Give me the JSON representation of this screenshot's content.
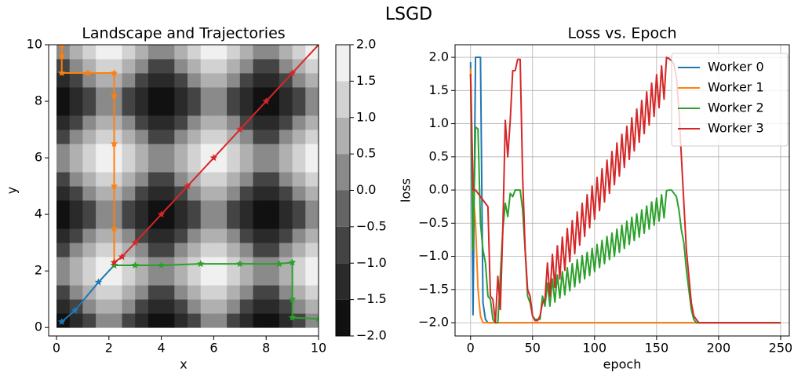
{
  "title": "LSGD",
  "chart_data": [
    {
      "type": "contour",
      "title": "Landscape and Trajectories",
      "xlabel": "x",
      "ylabel": "y",
      "xlim": [
        -0.3,
        10
      ],
      "ylim": [
        -0.3,
        10
      ],
      "xticks": [
        0,
        2,
        4,
        6,
        8,
        10
      ],
      "yticks": [
        0,
        2,
        4,
        6,
        8,
        10
      ],
      "grid_x": [
        0.25,
        0.75,
        1.25,
        1.75,
        2.25,
        2.75,
        3.25,
        3.75,
        4.25,
        4.75,
        5.25,
        5.75,
        6.25,
        6.75,
        7.25,
        7.75,
        8.25,
        8.75,
        9.25,
        9.75
      ],
      "grid_y": [
        0.25,
        0.75,
        1.25,
        1.75,
        2.25,
        2.75,
        3.25,
        3.75,
        4.25,
        4.75,
        5.25,
        5.75,
        6.25,
        6.75,
        7.25,
        7.75,
        8.25,
        8.75,
        9.25,
        9.75
      ],
      "z": [
        [
          -1.84,
          -1.3,
          -0.54,
          0,
          0,
          -0.54,
          -1.3,
          -1.84,
          -1.84,
          -1.3,
          -0.54,
          0,
          0,
          -0.54,
          -1.3,
          -1.84,
          -1.84,
          -1.3,
          -0.54,
          0
        ],
        [
          -1.3,
          -0.76,
          0,
          0.54,
          0.54,
          0,
          -0.76,
          -1.3,
          -1.3,
          -0.76,
          0,
          0.54,
          0.54,
          0,
          -0.76,
          -1.3,
          -1.3,
          -0.76,
          0,
          0.54
        ],
        [
          -0.54,
          0,
          0.76,
          1.3,
          1.3,
          0.76,
          0,
          -0.54,
          -0.54,
          0,
          0.76,
          1.3,
          1.3,
          0.76,
          0,
          -0.54,
          -0.54,
          0,
          0.76,
          1.3
        ],
        [
          0,
          0.54,
          1.3,
          1.84,
          1.84,
          1.3,
          0.54,
          0,
          0,
          0.54,
          1.3,
          1.84,
          1.84,
          1.3,
          0.54,
          0,
          0,
          0.54,
          1.3,
          1.84
        ],
        [
          0,
          0.54,
          1.3,
          1.84,
          1.84,
          1.3,
          0.54,
          0,
          0,
          0.54,
          1.3,
          1.84,
          1.84,
          1.3,
          0.54,
          0,
          0,
          0.54,
          1.3,
          1.84
        ],
        [
          -0.54,
          0,
          0.76,
          1.3,
          1.3,
          0.76,
          0,
          -0.54,
          -0.54,
          0,
          0.76,
          1.3,
          1.3,
          0.76,
          0,
          -0.54,
          -0.54,
          0,
          0.76,
          1.3
        ],
        [
          -1.3,
          -0.76,
          0,
          0.54,
          0.54,
          0,
          -0.76,
          -1.3,
          -1.3,
          -0.76,
          0,
          0.54,
          0.54,
          0,
          -0.76,
          -1.3,
          -1.3,
          -0.76,
          0,
          0.54
        ],
        [
          -1.84,
          -1.3,
          -0.54,
          0,
          0,
          -0.54,
          -1.3,
          -1.84,
          -1.84,
          -1.3,
          -0.54,
          0,
          0,
          -0.54,
          -1.3,
          -1.84,
          -1.84,
          -1.3,
          -0.54,
          0
        ],
        [
          -1.84,
          -1.3,
          -0.54,
          0,
          0,
          -0.54,
          -1.3,
          -1.84,
          -1.84,
          -1.3,
          -0.54,
          0,
          0,
          -0.54,
          -1.3,
          -1.84,
          -1.84,
          -1.3,
          -0.54,
          0
        ],
        [
          -1.3,
          -0.76,
          0,
          0.54,
          0.54,
          0,
          -0.76,
          -1.3,
          -1.3,
          -0.76,
          0,
          0.54,
          0.54,
          0,
          -0.76,
          -1.3,
          -1.3,
          -0.76,
          0,
          0.54
        ],
        [
          -0.54,
          0,
          0.76,
          1.3,
          1.3,
          0.76,
          0,
          -0.54,
          -0.54,
          0,
          0.76,
          1.3,
          1.3,
          0.76,
          0,
          -0.54,
          -0.54,
          0,
          0.76,
          1.3
        ],
        [
          0,
          0.54,
          1.3,
          1.84,
          1.84,
          1.3,
          0.54,
          0,
          0,
          0.54,
          1.3,
          1.84,
          1.84,
          1.3,
          0.54,
          0,
          0,
          0.54,
          1.3,
          1.84
        ],
        [
          0,
          0.54,
          1.3,
          1.84,
          1.84,
          1.3,
          0.54,
          0,
          0,
          0.54,
          1.3,
          1.84,
          1.84,
          1.3,
          0.54,
          0,
          0,
          0.54,
          1.3,
          1.84
        ],
        [
          -0.54,
          0,
          0.76,
          1.3,
          1.3,
          0.76,
          0,
          -0.54,
          -0.54,
          0,
          0.76,
          1.3,
          1.3,
          0.76,
          0,
          -0.54,
          -0.54,
          0,
          0.76,
          1.3
        ],
        [
          -1.3,
          -0.76,
          0,
          0.54,
          0.54,
          0,
          -0.76,
          -1.3,
          -1.3,
          -0.76,
          0,
          0.54,
          0.54,
          0,
          -0.76,
          -1.3,
          -1.3,
          -0.76,
          0,
          0.54
        ],
        [
          -1.84,
          -1.3,
          -0.54,
          0,
          0,
          -0.54,
          -1.3,
          -1.84,
          -1.84,
          -1.3,
          -0.54,
          0,
          0,
          -0.54,
          -1.3,
          -1.84,
          -1.84,
          -1.3,
          -0.54,
          0
        ],
        [
          -1.84,
          -1.3,
          -0.54,
          0,
          0,
          -0.54,
          -1.3,
          -1.84,
          -1.84,
          -1.3,
          -0.54,
          0,
          0,
          -0.54,
          -1.3,
          -1.84,
          -1.84,
          -1.3,
          -0.54,
          0
        ],
        [
          -1.3,
          -0.76,
          0,
          0.54,
          0.54,
          0,
          -0.76,
          -1.3,
          -1.3,
          -0.76,
          0,
          0.54,
          0.54,
          0,
          -0.76,
          -1.3,
          -1.3,
          -0.76,
          0,
          0.54
        ],
        [
          -0.54,
          0,
          0.76,
          1.3,
          1.3,
          0.76,
          0,
          -0.54,
          -0.54,
          0,
          0.76,
          1.3,
          1.3,
          0.76,
          0,
          -0.54,
          -0.54,
          0,
          0.76,
          1.3
        ],
        [
          0,
          0.54,
          1.3,
          1.84,
          1.84,
          1.3,
          0.54,
          0,
          0,
          0.54,
          1.3,
          1.84,
          1.84,
          1.3,
          0.54,
          0,
          0,
          0.54,
          1.3,
          1.84
        ]
      ],
      "colorbar_ticks": [
        {
          "value": -2,
          "label": "−2.0"
        },
        {
          "value": -1.5,
          "label": "−1.5"
        },
        {
          "value": -1,
          "label": "−1.0"
        },
        {
          "value": -0.5,
          "label": "−0.5"
        },
        {
          "value": 0,
          "label": "0.0"
        },
        {
          "value": 0.5,
          "label": "0.5"
        },
        {
          "value": 1,
          "label": "1.0"
        },
        {
          "value": 1.5,
          "label": "1.5"
        },
        {
          "value": 2,
          "label": "2.0"
        }
      ],
      "colors": [
        "#111111",
        "#2a2a2a",
        "#444444",
        "#646464",
        "#8a8a8a",
        "#b0b0b0",
        "#d2d2d2",
        "#f0f0f0"
      ],
      "series": [
        {
          "color": "#1f77b4",
          "x": [
            0.2,
            0.7,
            1.6,
            2.2
          ],
          "y": [
            0.2,
            0.6,
            1.6,
            2.2
          ]
        },
        {
          "color": "#ff7f0e",
          "x": [
            0.2,
            0.2,
            0.2,
            1.2,
            2.2,
            2.2,
            2.2,
            2.2,
            2.2,
            2.2
          ],
          "y": [
            10,
            9.6,
            9,
            9,
            9,
            8.2,
            6.5,
            5,
            3.5,
            2.3
          ]
        },
        {
          "color": "#2ca02c",
          "x": [
            10,
            9,
            9,
            9,
            8.5,
            7,
            5.5,
            4,
            3,
            2.2
          ],
          "y": [
            0.3,
            0.35,
            1,
            2.3,
            2.25,
            2.25,
            2.25,
            2.2,
            2.2,
            2.2
          ]
        },
        {
          "color": "#d62728",
          "x": [
            10,
            9,
            8,
            7,
            6,
            5,
            4,
            3,
            2.5,
            2.2
          ],
          "y": [
            10,
            9,
            8,
            7,
            6,
            5,
            4,
            3,
            2.5,
            2.3
          ]
        }
      ]
    },
    {
      "type": "line",
      "title": "Loss vs. Epoch",
      "xlabel": "epoch",
      "ylabel": "loss",
      "xlim": [
        -12.5,
        257
      ],
      "ylim": [
        -2.2,
        2.19
      ],
      "grid": true,
      "legend": "upper right",
      "xticks": [
        0,
        50,
        100,
        150,
        200,
        250
      ],
      "yticks": [
        {
          "value": -2,
          "label": "−2.0"
        },
        {
          "value": -1.5,
          "label": "−1.5"
        },
        {
          "value": -1,
          "label": "−1.0"
        },
        {
          "value": -0.5,
          "label": "−0.5"
        },
        {
          "value": 0,
          "label": "0.0"
        },
        {
          "value": 0.5,
          "label": "0.5"
        },
        {
          "value": 1,
          "label": "1.0"
        },
        {
          "value": 1.5,
          "label": "1.5"
        },
        {
          "value": 2,
          "label": "2.0"
        }
      ],
      "x": [
        0,
        2,
        4,
        6,
        8,
        10,
        12,
        14,
        16,
        18,
        20,
        22,
        24,
        26,
        28,
        30,
        32,
        34,
        36,
        38,
        40,
        42,
        44,
        46,
        48,
        50,
        52,
        54,
        56,
        58,
        60,
        62,
        64,
        66,
        68,
        70,
        72,
        74,
        76,
        78,
        80,
        82,
        84,
        86,
        88,
        90,
        92,
        94,
        96,
        98,
        100,
        102,
        104,
        106,
        108,
        110,
        112,
        114,
        116,
        118,
        120,
        122,
        124,
        126,
        128,
        130,
        132,
        134,
        136,
        138,
        140,
        142,
        144,
        146,
        148,
        150,
        152,
        154,
        156,
        158,
        160,
        162,
        164,
        166,
        168,
        170,
        172,
        174,
        176,
        178,
        180,
        182,
        184,
        186,
        188,
        190,
        250
      ],
      "series": [
        {
          "name": "Worker 0",
          "color": "#1f77b4",
          "values": [
            1.93,
            -1.88,
            2,
            2,
            2,
            -1.7,
            -1.95,
            -2,
            -2,
            -2,
            -2,
            -2,
            -2,
            -2,
            -2,
            -2,
            -2,
            -2,
            -2,
            -2,
            -2,
            -2,
            -2,
            -2,
            -2,
            -2,
            -2,
            -2,
            -2,
            -2,
            -2,
            -2,
            -2,
            -2,
            -2,
            -2,
            -2,
            -2,
            -2,
            -2,
            -2,
            -2,
            -2,
            -2,
            -2,
            -2,
            -2,
            -2,
            -2,
            -2,
            -2,
            -2,
            -2,
            -2,
            -2,
            -2,
            -2,
            -2,
            -2,
            -2,
            -2,
            -2,
            -2,
            -2,
            -2,
            -2,
            -2,
            -2,
            -2,
            -2,
            -2,
            -2,
            -2,
            -2,
            -2,
            -2,
            -2,
            -2,
            -2,
            -2,
            -2,
            -2,
            -2,
            -2,
            -2,
            -2,
            -2,
            -2,
            -2,
            -2,
            -2,
            -2,
            -2,
            -2,
            -2,
            -2,
            -2
          ]
        },
        {
          "name": "Worker 1",
          "color": "#ff7f0e",
          "values": [
            1.83,
            0,
            -0.5,
            -1.5,
            -1.9,
            -2,
            -2,
            -2,
            -2,
            -2,
            -2,
            -2,
            -2,
            -2,
            -2,
            -2,
            -2,
            -2,
            -2,
            -2,
            -2,
            -2,
            -2,
            -2,
            -2,
            -2,
            -2,
            -2,
            -2,
            -2,
            -2,
            -2,
            -2,
            -2,
            -2,
            -2,
            -2,
            -2,
            -2,
            -2,
            -2,
            -2,
            -2,
            -2,
            -2,
            -2,
            -2,
            -2,
            -2,
            -2,
            -2,
            -2,
            -2,
            -2,
            -2,
            -2,
            -2,
            -2,
            -2,
            -2,
            -2,
            -2,
            -2,
            -2,
            -2,
            -2,
            -2,
            -2,
            -2,
            -2,
            -2,
            -2,
            -2,
            -2,
            -2,
            -2,
            -2,
            -2,
            -2,
            -2,
            -2,
            -2,
            -2,
            -2,
            -2,
            -2,
            -2,
            -2,
            -2,
            -2,
            -2,
            -2,
            -2,
            -2,
            -2,
            -2,
            -2
          ]
        },
        {
          "name": "Worker 2",
          "color": "#2ca02c",
          "values": [
            1.75,
            -0.9,
            0.95,
            0.92,
            -0.5,
            -0.9,
            -1.1,
            -1.6,
            -1.65,
            -1.95,
            -2,
            -2,
            -1.3,
            -0.6,
            -0.2,
            -0.4,
            -0.05,
            -0.1,
            0,
            0,
            0,
            -0.3,
            -0.9,
            -1.6,
            -1.7,
            -1.9,
            -1.95,
            -1.95,
            -1.95,
            -1.6,
            -1.75,
            -1.4,
            -1.75,
            -1.34,
            -1.69,
            -1.28,
            -1.63,
            -1.23,
            -1.58,
            -1.17,
            -1.52,
            -1.11,
            -1.46,
            -1.05,
            -1.4,
            -0.99,
            -1.34,
            -0.94,
            -1.29,
            -0.88,
            -1.23,
            -0.82,
            -1.17,
            -0.76,
            -1.11,
            -0.7,
            -1.05,
            -0.65,
            -1,
            -0.59,
            -0.94,
            -0.53,
            -0.88,
            -0.47,
            -0.82,
            -0.41,
            -0.76,
            -0.36,
            -0.71,
            -0.3,
            -0.65,
            -0.24,
            -0.59,
            -0.18,
            -0.53,
            -0.12,
            -0.47,
            -0.07,
            -0.42,
            -0.01,
            0,
            0,
            -0.05,
            -0.1,
            -0.3,
            -0.6,
            -0.8,
            -1.2,
            -1.5,
            -1.8,
            -1.95,
            -2,
            -2,
            -2,
            -2,
            -2,
            -2
          ]
        },
        {
          "name": "Worker 3",
          "color": "#d62728",
          "values": [
            1.75,
            0,
            0,
            -0.05,
            -0.1,
            -0.15,
            -0.2,
            -0.25,
            -1.6,
            -1.65,
            -2,
            -1.3,
            -1.8,
            -0.6,
            1.05,
            0.5,
            1.05,
            1.8,
            1.8,
            1.97,
            1.97,
            0.2,
            -0.9,
            -1.5,
            -1.6,
            -1.9,
            -1.97,
            -1.97,
            -1.9,
            -1.7,
            -1.65,
            -1.1,
            -1.6,
            -0.97,
            -1.47,
            -0.84,
            -1.34,
            -0.71,
            -1.21,
            -0.58,
            -1.08,
            -0.46,
            -0.96,
            -0.33,
            -0.83,
            -0.2,
            -0.7,
            -0.07,
            -0.57,
            0.06,
            -0.44,
            0.19,
            -0.31,
            0.32,
            -0.18,
            0.45,
            -0.05,
            0.58,
            0.08,
            0.71,
            0.21,
            0.84,
            0.34,
            0.96,
            0.46,
            1.09,
            0.59,
            1.22,
            0.72,
            1.35,
            0.85,
            1.48,
            0.98,
            1.61,
            1.11,
            1.74,
            1.24,
            1.87,
            1.37,
            2,
            1.98,
            1.95,
            1.9,
            1.7,
            1.2,
            0.5,
            -0.2,
            -0.9,
            -1.3,
            -1.7,
            -1.9,
            -1.95,
            -2,
            -2,
            -2,
            -2,
            -2
          ]
        }
      ]
    }
  ]
}
